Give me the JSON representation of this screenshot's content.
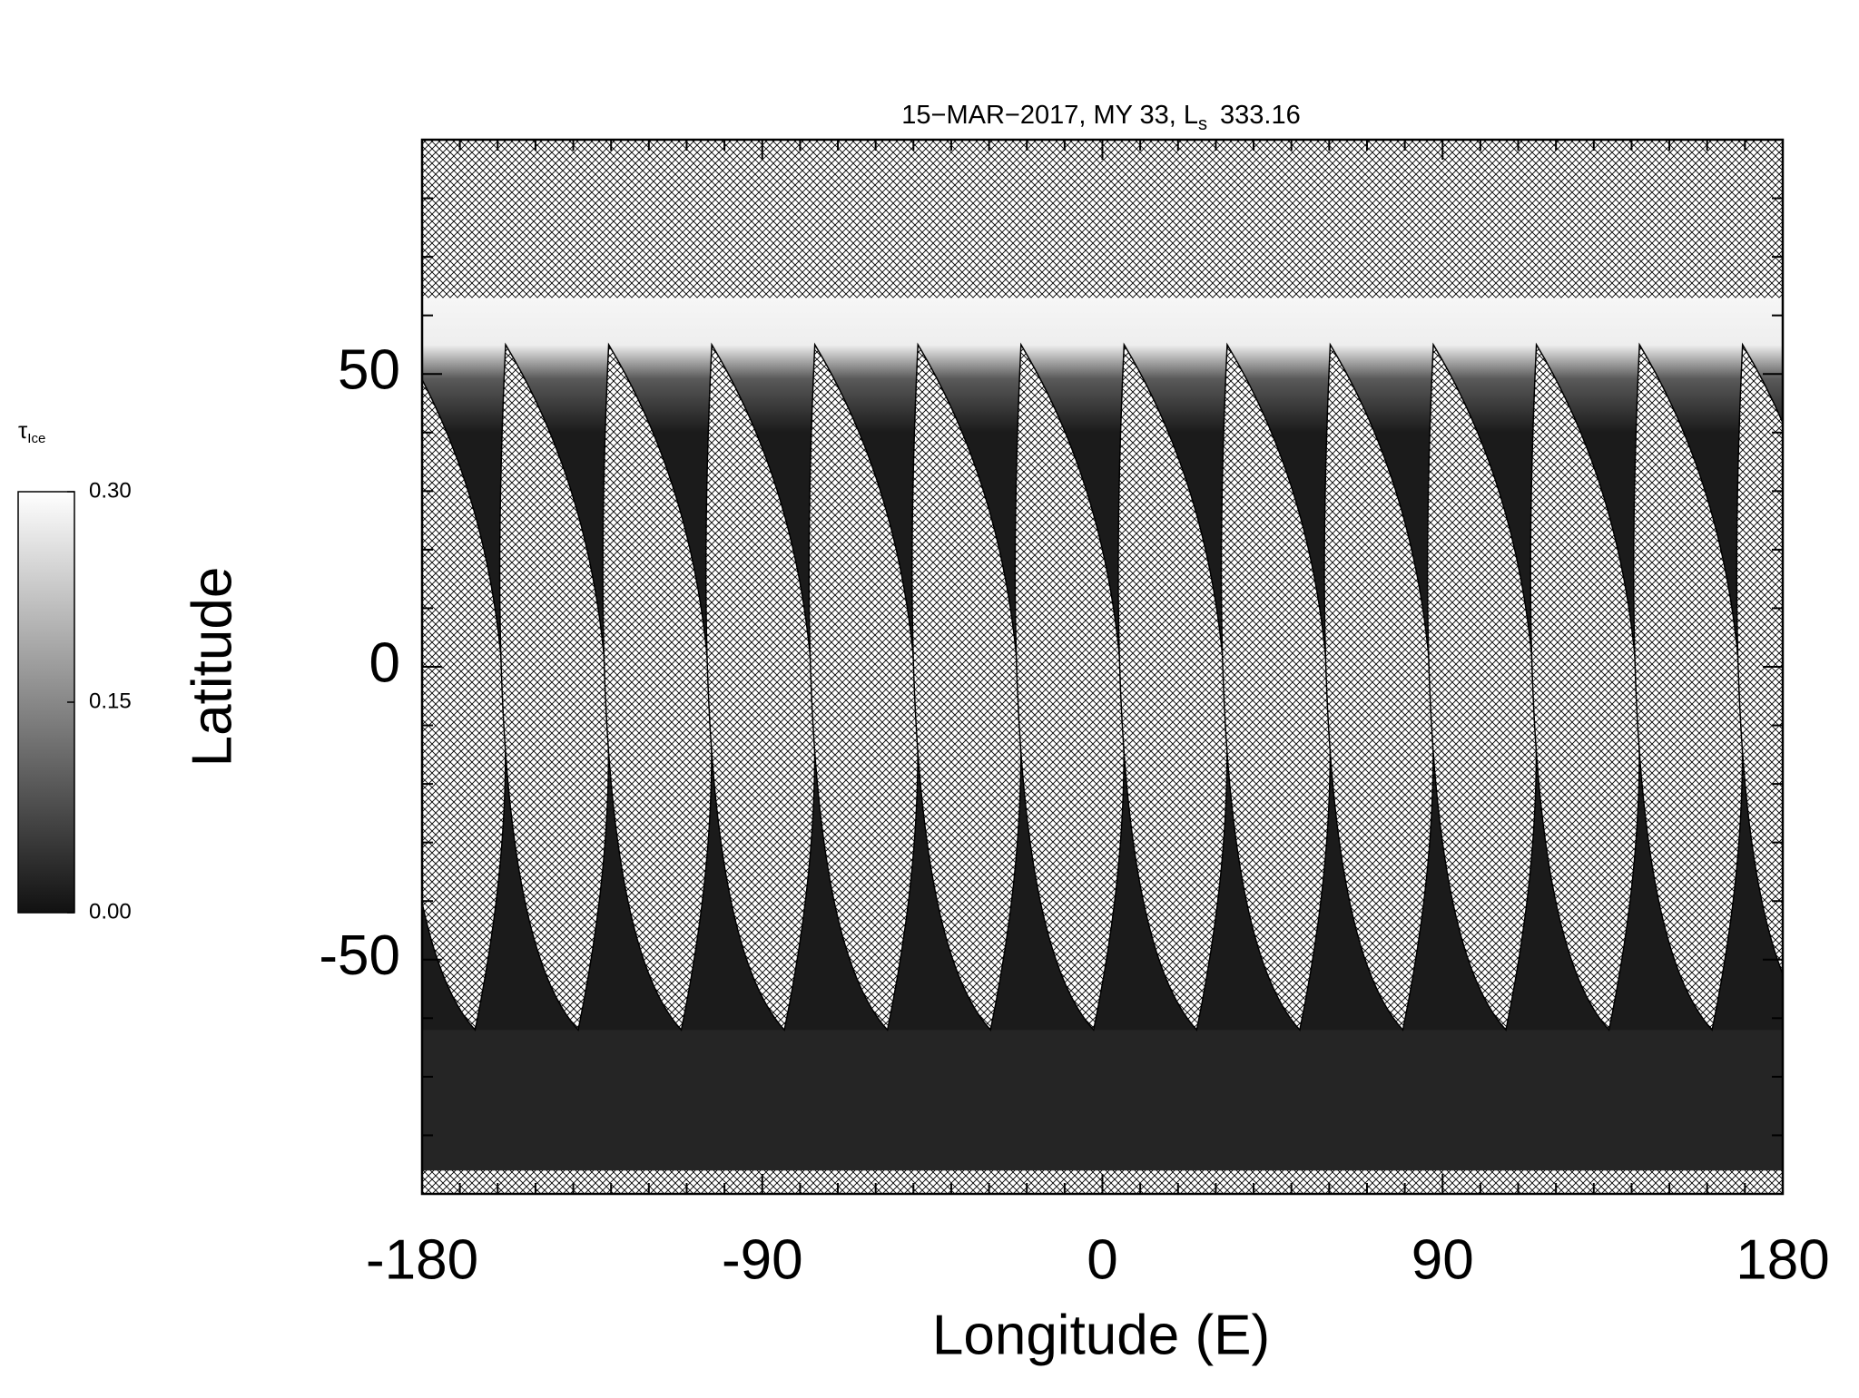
{
  "chart_data": {
    "type": "map",
    "title": {
      "text": "15−MAR−2017, MY 33,  L",
      "subscript": "s",
      "suffix": "333.16"
    },
    "x_label": "Longitude (E)",
    "y_label": "Latitude",
    "xlim": [
      -180,
      180
    ],
    "ylim": [
      -90,
      90
    ],
    "xticks": [
      -180,
      -90,
      0,
      90,
      180
    ],
    "yticks": [
      -50,
      0,
      50
    ],
    "xminorticks": [
      -170,
      -160,
      -150,
      -140,
      -130,
      -120,
      -110,
      -100,
      -80,
      -70,
      -60,
      -50,
      -40,
      -30,
      -20,
      -10,
      10,
      20,
      30,
      40,
      50,
      60,
      70,
      80,
      100,
      110,
      120,
      130,
      140,
      150,
      160,
      170
    ],
    "yminorticks": [
      -80,
      -70,
      -60,
      -40,
      -30,
      -20,
      -10,
      10,
      20,
      30,
      40,
      60,
      70,
      80
    ],
    "colorbar": {
      "label": {
        "symbol": "τ",
        "subscript": "Ice"
      },
      "lim": [
        0,
        0.3
      ],
      "ticks": [
        {
          "value": 0,
          "label": "0.00"
        },
        {
          "value": 0.15,
          "label": "0.15"
        },
        {
          "value": 0.3,
          "label": "0.30"
        }
      ],
      "colors": [
        "#111111",
        "#ffffff"
      ]
    }
  }
}
